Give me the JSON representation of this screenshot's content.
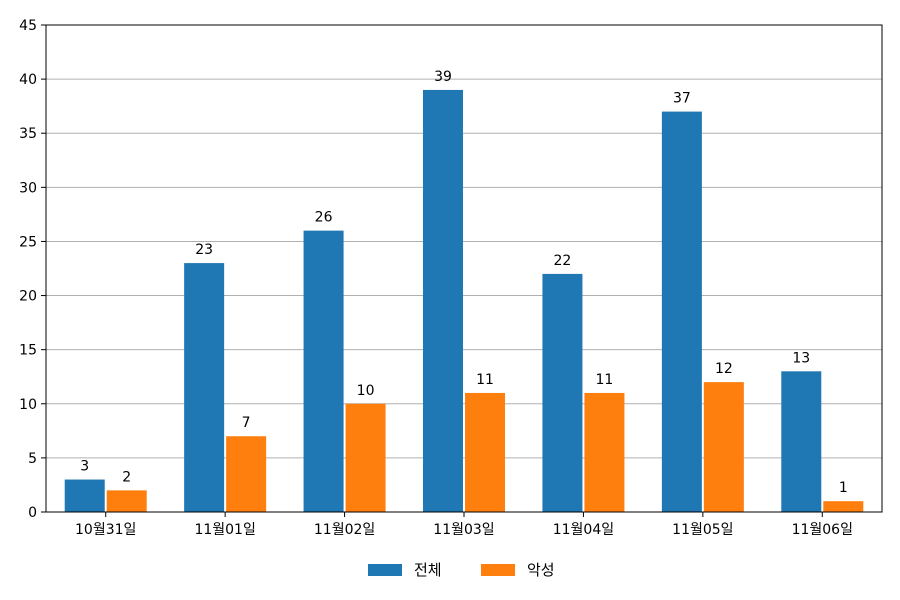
{
  "chart_data": {
    "type": "bar",
    "categories": [
      "10월31일",
      "11월01일",
      "11월02일",
      "11월03일",
      "11월04일",
      "11월05일",
      "11월06일"
    ],
    "series": [
      {
        "name": "전체",
        "color": "#1f77b4",
        "values": [
          3,
          23,
          26,
          39,
          22,
          37,
          13
        ]
      },
      {
        "name": "악성",
        "color": "#ff7f0e",
        "values": [
          2,
          7,
          10,
          11,
          11,
          12,
          1
        ]
      }
    ],
    "ylim": [
      0,
      45
    ],
    "yticks": [
      0,
      5,
      10,
      15,
      20,
      25,
      30,
      35,
      40,
      45
    ],
    "grid": "horizontal",
    "legend": "bottom-center",
    "title": "",
    "xlabel": "",
    "ylabel": ""
  }
}
